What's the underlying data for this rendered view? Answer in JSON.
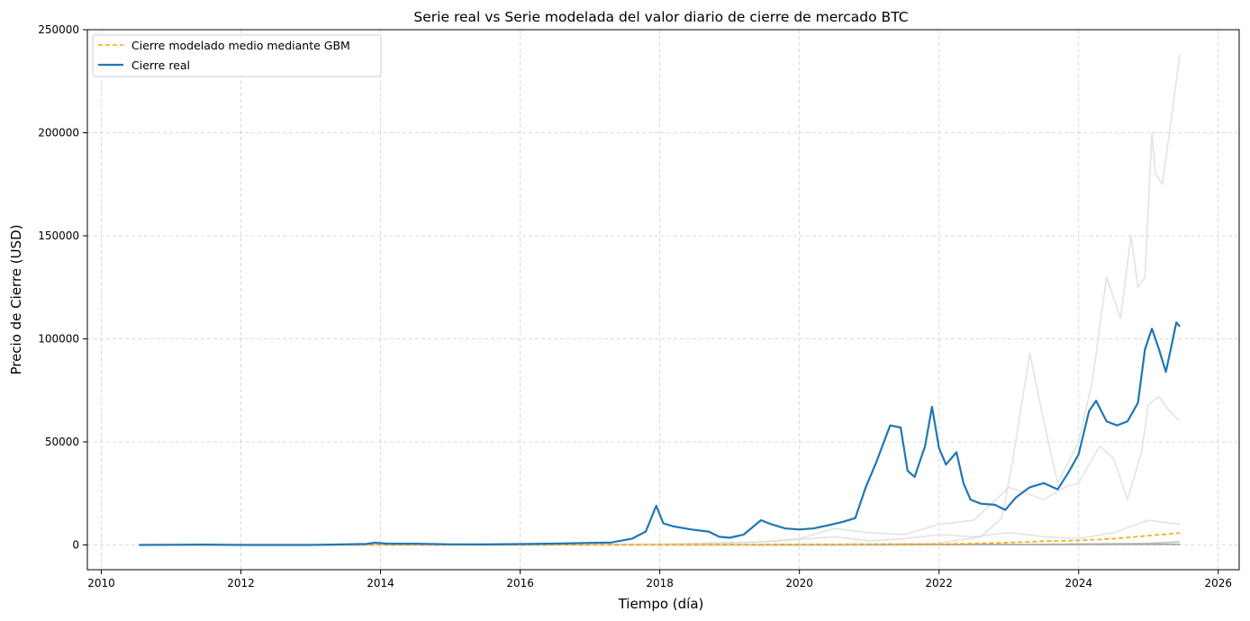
{
  "chart_data": {
    "type": "line",
    "title": "Serie real vs Serie modelada del valor diario de cierre de mercado BTC",
    "xlabel": "Tiempo (día)",
    "ylabel": "Precio de Cierre (USD)",
    "xlim": [
      2009.8,
      2026.3
    ],
    "ylim": [
      -12000,
      250000
    ],
    "xticks": [
      2010,
      2012,
      2014,
      2016,
      2018,
      2020,
      2022,
      2024,
      2026
    ],
    "yticks": [
      0,
      50000,
      100000,
      150000,
      200000,
      250000
    ],
    "grid": true,
    "legend_position": "top-left",
    "legend": [
      {
        "label": "Cierre modelado medio mediante GBM",
        "style": "dashed",
        "color": "#ffa500"
      },
      {
        "label": "Cierre real",
        "style": "solid",
        "color": "#1f77b4"
      }
    ],
    "series": [
      {
        "name": "Cierre real",
        "color": "#1f77b4",
        "style": "solid",
        "x": [
          2010.54,
          2011.0,
          2011.5,
          2012.0,
          2012.5,
          2013.0,
          2013.3,
          2013.8,
          2013.92,
          2014.1,
          2014.5,
          2015.0,
          2015.5,
          2016.0,
          2016.5,
          2017.0,
          2017.3,
          2017.6,
          2017.8,
          2017.95,
          2018.05,
          2018.2,
          2018.45,
          2018.7,
          2018.85,
          2019.0,
          2019.2,
          2019.45,
          2019.6,
          2019.8,
          2020.0,
          2020.2,
          2020.4,
          2020.6,
          2020.8,
          2020.95,
          2021.1,
          2021.3,
          2021.45,
          2021.55,
          2021.65,
          2021.8,
          2021.9,
          2022.0,
          2022.1,
          2022.25,
          2022.35,
          2022.45,
          2022.6,
          2022.8,
          2022.95,
          2023.1,
          2023.3,
          2023.5,
          2023.7,
          2023.85,
          2024.0,
          2024.15,
          2024.25,
          2024.4,
          2024.55,
          2024.7,
          2024.85,
          2024.95,
          2025.05,
          2025.15,
          2025.25,
          2025.32,
          2025.4,
          2025.45
        ],
        "y": [
          0,
          100,
          200,
          5,
          7,
          13,
          200,
          500,
          1100,
          600,
          600,
          300,
          250,
          430,
          650,
          1000,
          1200,
          3000,
          6500,
          19000,
          10500,
          9000,
          7500,
          6500,
          4000,
          3500,
          5000,
          12000,
          10000,
          8000,
          7500,
          8000,
          9500,
          11000,
          13000,
          28000,
          40000,
          58000,
          57000,
          36000,
          33000,
          48000,
          67000,
          47000,
          39000,
          45000,
          30000,
          22000,
          20000,
          19500,
          17000,
          23000,
          28000,
          30000,
          27000,
          35000,
          44000,
          65000,
          70000,
          60000,
          58000,
          60000,
          69000,
          95000,
          105000,
          95000,
          84000,
          95000,
          108000,
          106000
        ]
      },
      {
        "name": "Cierre modelado medio mediante GBM",
        "color": "#ffa500",
        "style": "dashed",
        "x": [
          2010.54,
          2012.0,
          2014.0,
          2016.0,
          2018.0,
          2020.0,
          2021.0,
          2022.0,
          2022.5,
          2023.0,
          2023.5,
          2024.0,
          2024.5,
          2025.0,
          2025.45
        ],
        "y": [
          0,
          2,
          30,
          80,
          200,
          300,
          350,
          400,
          700,
          1200,
          1800,
          2200,
          3000,
          4500,
          5800
        ]
      },
      {
        "name": "",
        "color": "#d9d9d9",
        "style": "solid",
        "x": [
          2010.54,
          2014.0,
          2018.0,
          2020.0,
          2021.0,
          2022.0,
          2022.6,
          2022.9,
          2023.05,
          2023.3,
          2023.5,
          2023.7,
          2024.0,
          2024.2,
          2024.4,
          2024.6,
          2024.75,
          2024.85,
          2024.95,
          2025.05,
          2025.1,
          2025.2,
          2025.3,
          2025.45
        ],
        "y": [
          0,
          0,
          50,
          300,
          500,
          900,
          4000,
          13000,
          40000,
          93000,
          60000,
          30000,
          50000,
          80000,
          130000,
          110000,
          150000,
          125000,
          130000,
          200000,
          180000,
          175000,
          200000,
          238000
        ]
      },
      {
        "name": "",
        "color": "#d9d9d9",
        "style": "solid",
        "x": [
          2010.54,
          2015.0,
          2018.0,
          2019.5,
          2020.0,
          2020.5,
          2021.0,
          2021.5,
          2022.0,
          2022.5,
          2023.0,
          2023.5,
          2023.8,
          2024.0,
          2024.3,
          2024.5,
          2024.7,
          2024.9,
          2025.0,
          2025.15,
          2025.3,
          2025.45
        ],
        "y": [
          0,
          0,
          200,
          1500,
          3000,
          8000,
          6000,
          5000,
          10000,
          12000,
          28000,
          22000,
          28000,
          30000,
          48000,
          42000,
          22000,
          45000,
          68000,
          72000,
          65000,
          60000
        ]
      },
      {
        "name": "",
        "color": "#d9d9d9",
        "style": "solid",
        "x": [
          2010.54,
          2016.0,
          2018.0,
          2019.5,
          2020.5,
          2021.0,
          2021.5,
          2022.0,
          2022.5,
          2023.0,
          2023.5,
          2024.0,
          2024.5,
          2025.0,
          2025.45
        ],
        "y": [
          0,
          50,
          400,
          1500,
          4000,
          2000,
          3000,
          5000,
          4000,
          6000,
          4000,
          3000,
          6000,
          12000,
          10000
        ]
      },
      {
        "name": "",
        "color": "#aaaaaa",
        "style": "solid",
        "x": [
          2010.54,
          2018.0,
          2022.0,
          2023.0,
          2024.0,
          2025.0,
          2025.45
        ],
        "y": [
          0,
          30,
          100,
          200,
          500,
          800,
          1500
        ]
      },
      {
        "name": "",
        "color": "#888888",
        "style": "solid",
        "x": [
          2010.54,
          2020.0,
          2025.45
        ],
        "y": [
          0,
          50,
          300
        ]
      }
    ]
  }
}
